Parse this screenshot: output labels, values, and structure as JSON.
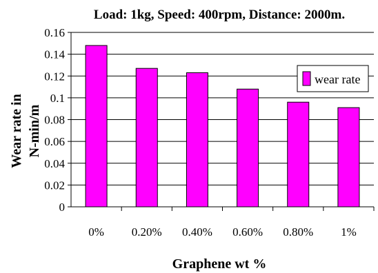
{
  "chart_data": {
    "type": "bar",
    "title": "Load: 1kg, Speed: 400rpm, Distance: 2000m.",
    "xlabel": "Graphene wt %",
    "ylabel_lines": [
      "Wear rate in",
      "N-min/m"
    ],
    "categories": [
      "0%",
      "0.20%",
      "0.40%",
      "0.60%",
      "0.80%",
      "1%"
    ],
    "series": [
      {
        "name": "wear rate",
        "values": [
          0.148,
          0.127,
          0.123,
          0.108,
          0.096,
          0.091
        ],
        "color": "#ff00ff"
      }
    ],
    "ylim": [
      0,
      0.16
    ],
    "yticks": [
      0,
      0.02,
      0.04,
      0.06,
      0.08,
      0.1,
      0.12,
      0.14,
      0.16
    ],
    "ytick_labels": [
      "0",
      "0.02",
      "0.04",
      "0.06",
      "0.08",
      "0.1",
      "0.12",
      "0.14",
      "0.16"
    ],
    "grid": true,
    "legend_position": "right"
  }
}
